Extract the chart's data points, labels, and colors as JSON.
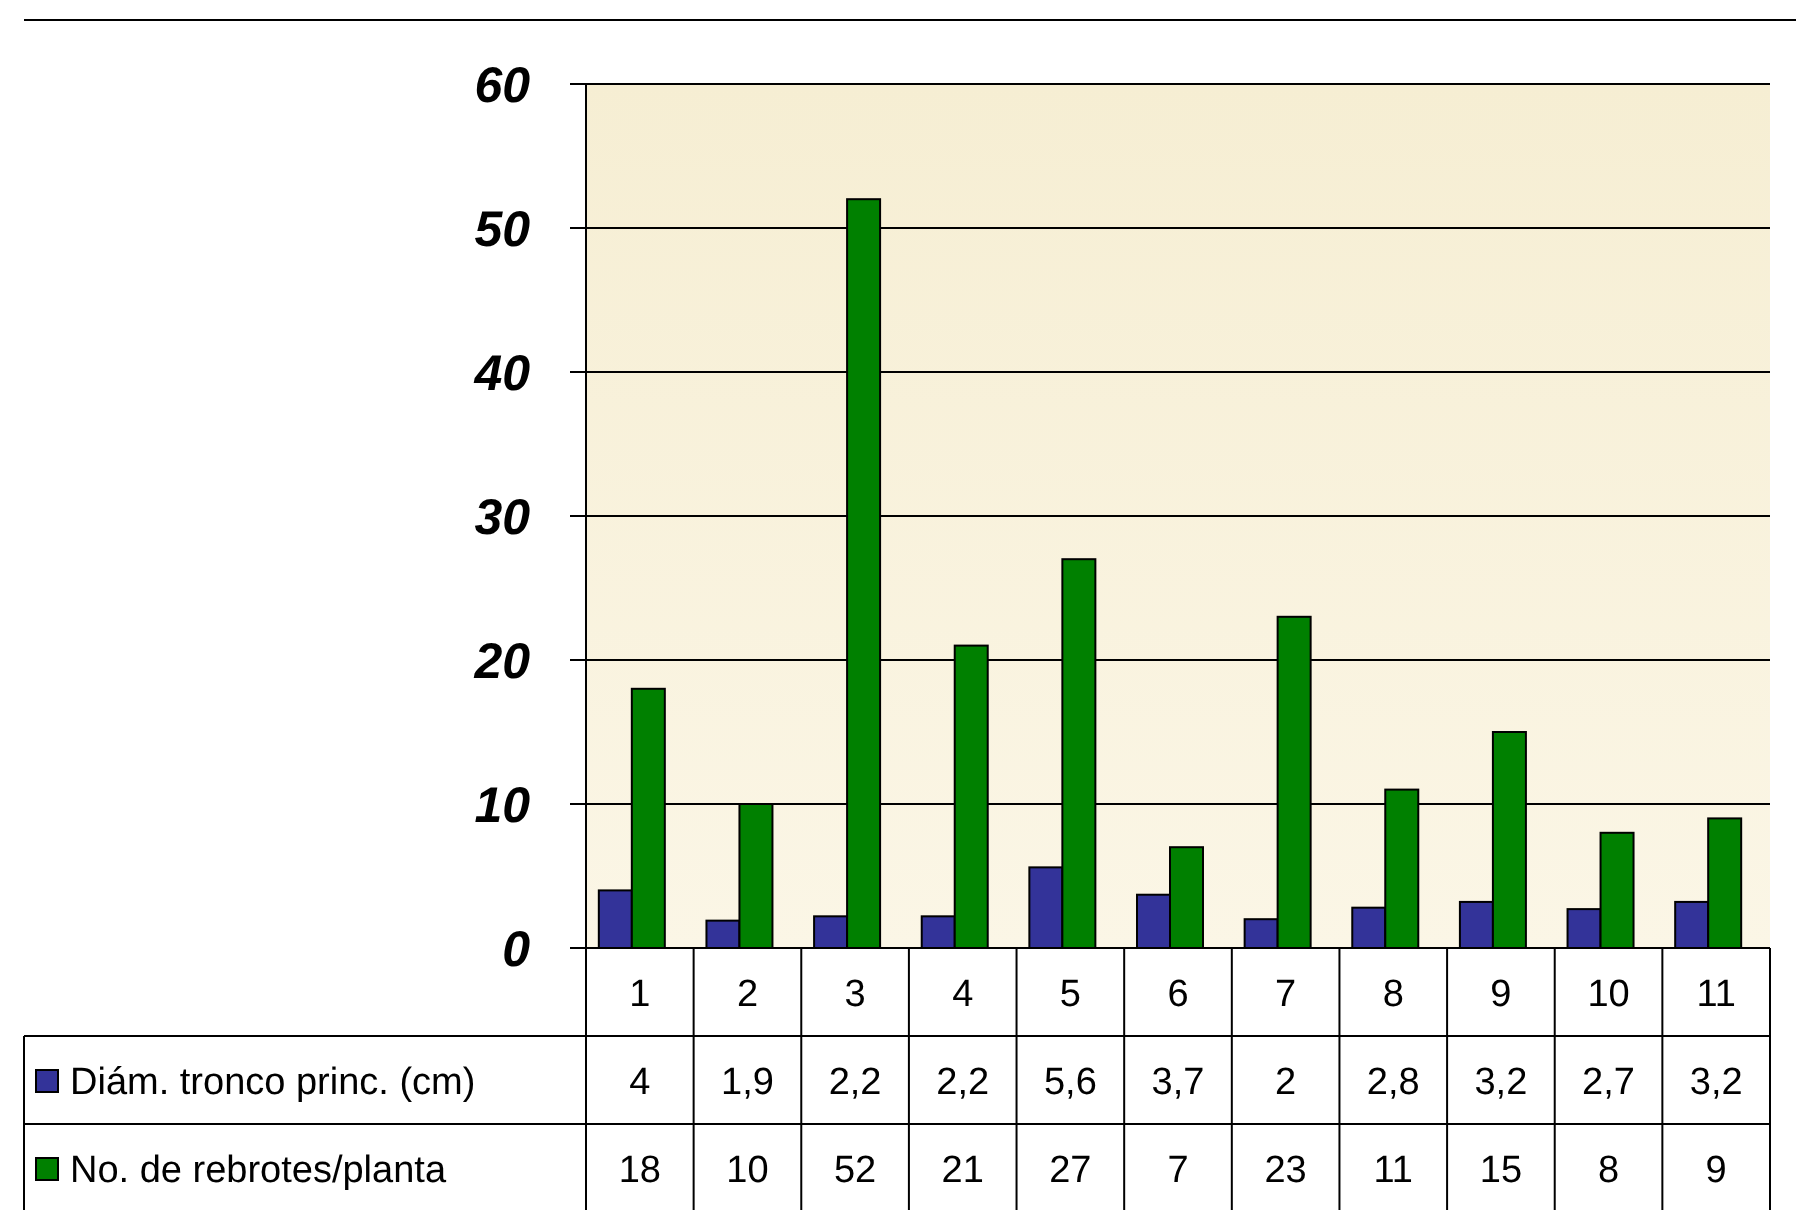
{
  "chart_data": {
    "type": "bar",
    "categories": [
      "1",
      "2",
      "3",
      "4",
      "5",
      "6",
      "7",
      "8",
      "9",
      "10",
      "11"
    ],
    "series": [
      {
        "name": "Diám. tronco princ. (cm)",
        "color": "#333399",
        "values": [
          4,
          1.9,
          2.2,
          2.2,
          5.6,
          3.7,
          2,
          2.8,
          3.2,
          2.7,
          3.2
        ],
        "value_labels": [
          "4",
          "1,9",
          "2,2",
          "2,2",
          "5,6",
          "3,7",
          "2",
          "2,8",
          "3,2",
          "2,7",
          "3,2"
        ]
      },
      {
        "name": "No. de rebrotes/planta",
        "color": "#008000",
        "values": [
          18,
          10,
          52,
          21,
          27,
          7,
          23,
          11,
          15,
          8,
          9
        ],
        "value_labels": [
          "18",
          "10",
          "52",
          "21",
          "27",
          "7",
          "23",
          "11",
          "15",
          "8",
          "9"
        ]
      }
    ],
    "ylim": [
      0,
      60
    ],
    "yticks": [
      0,
      10,
      20,
      30,
      40,
      50,
      60
    ],
    "grid": "y",
    "legend": "bottom"
  }
}
